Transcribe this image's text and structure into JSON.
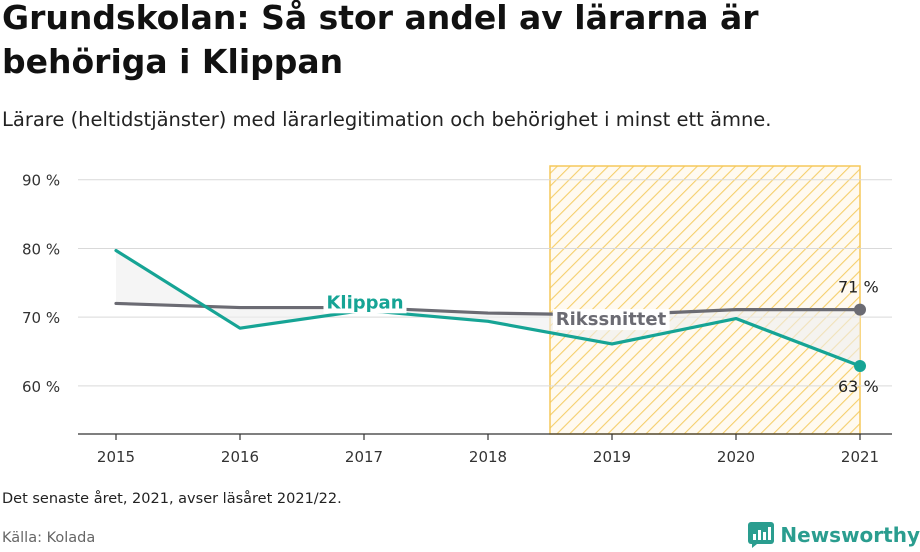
{
  "header": {
    "title": "Grundskolan: Så stor andel av lärarna är behöriga i Klippan",
    "subtitle": "Lärare (heltidstjänster) med lärarlegitimation och behörighet i minst ett ämne."
  },
  "footer": {
    "note": "Det senaste året, 2021, avser läsåret 2021/22.",
    "source": "Källa: Kolada",
    "brand": "Newsworthy"
  },
  "colors": {
    "klippan": "#16a495",
    "riks": "#6b6b73",
    "highlight": "#f5c85a",
    "brand": "#2a9d8f"
  },
  "chart_data": {
    "type": "line",
    "x": [
      2015,
      2016,
      2017,
      2018,
      2019,
      2020,
      2021
    ],
    "y_ticks": [
      60,
      70,
      80,
      90
    ],
    "y_tick_labels": [
      "60 %",
      "70 %",
      "80 %",
      "90 %"
    ],
    "ylim": [
      53,
      92
    ],
    "highlight_range": [
      2018.5,
      2021
    ],
    "series": [
      {
        "name": "Klippan",
        "values": [
          79.7,
          68.4,
          71.0,
          69.4,
          66.1,
          69.8,
          62.9
        ],
        "end_label": "63 %"
      },
      {
        "name": "Rikssnittet",
        "values": [
          72.0,
          71.4,
          71.4,
          70.6,
          70.3,
          71.1,
          71.1
        ],
        "end_label": "71 %"
      }
    ]
  }
}
